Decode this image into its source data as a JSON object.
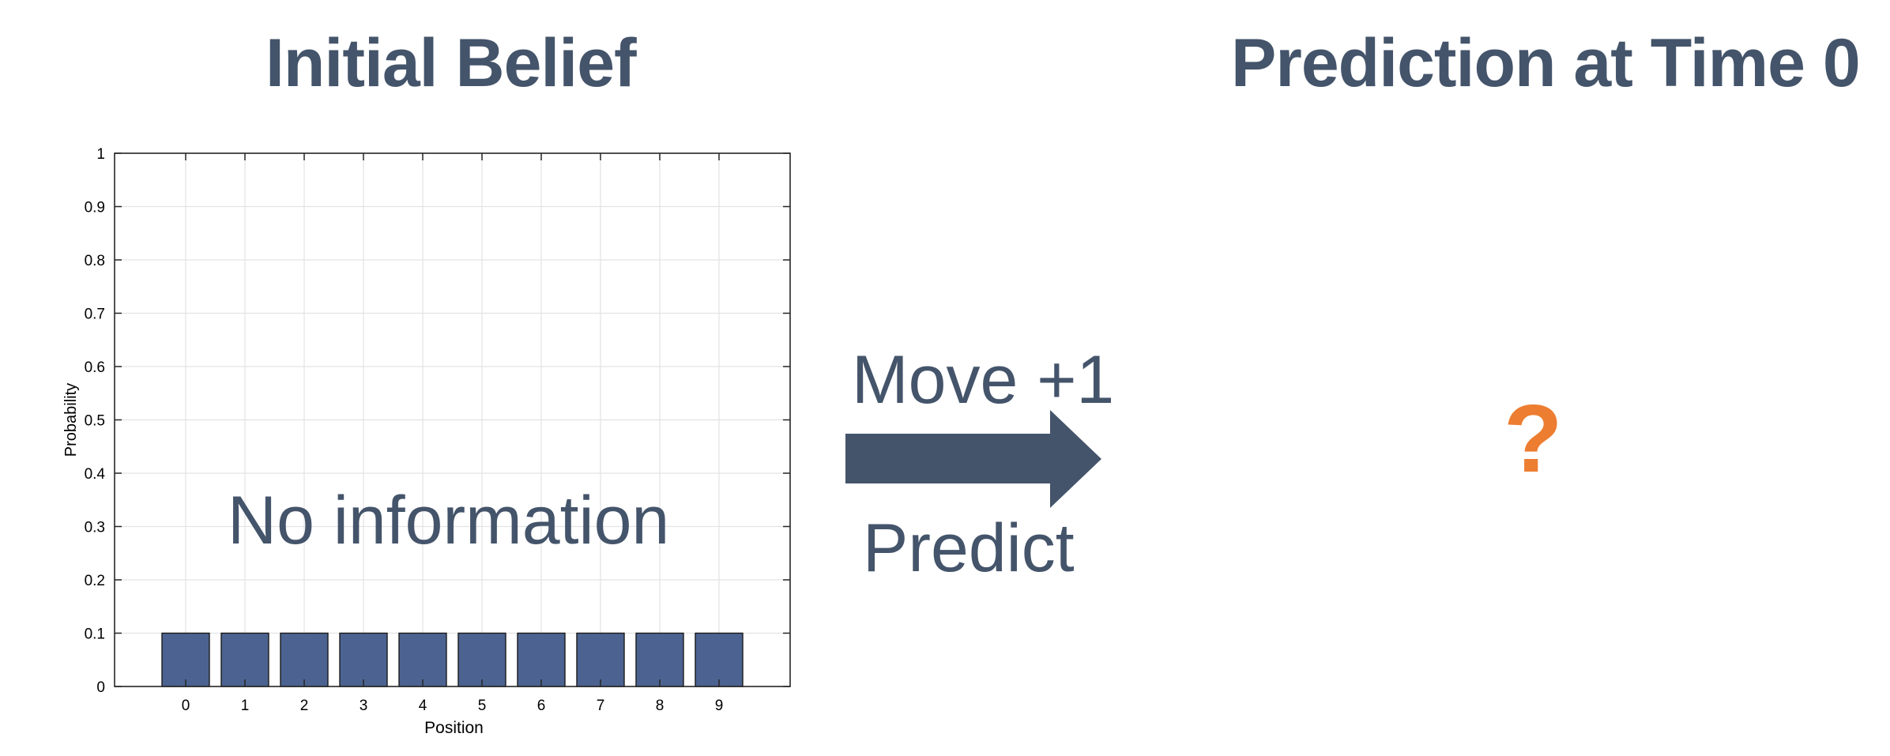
{
  "slide": {
    "left_title": "Initial Belief",
    "right_title": "Prediction at Time 0",
    "overlay_note": "No information",
    "arrow_top_label": "Move +1",
    "arrow_bottom_label": "Predict",
    "placeholder_symbol": "?",
    "colors": {
      "title": "#44546a",
      "bar_fill": "#4c6391",
      "question": "#ed7d31",
      "arrow": "#44546a"
    }
  },
  "chart_data": {
    "type": "bar",
    "categories": [
      "0",
      "1",
      "2",
      "3",
      "4",
      "5",
      "6",
      "7",
      "8",
      "9"
    ],
    "values": [
      0.1,
      0.1,
      0.1,
      0.1,
      0.1,
      0.1,
      0.1,
      0.1,
      0.1,
      0.1
    ],
    "xlabel": "Position",
    "ylabel": "Probability",
    "ylim": [
      0,
      1
    ],
    "yticks": [
      "0",
      "0.1",
      "0.2",
      "0.3",
      "0.4",
      "0.5",
      "0.6",
      "0.7",
      "0.8",
      "0.9",
      "1"
    ],
    "grid": true,
    "legend": "none"
  }
}
